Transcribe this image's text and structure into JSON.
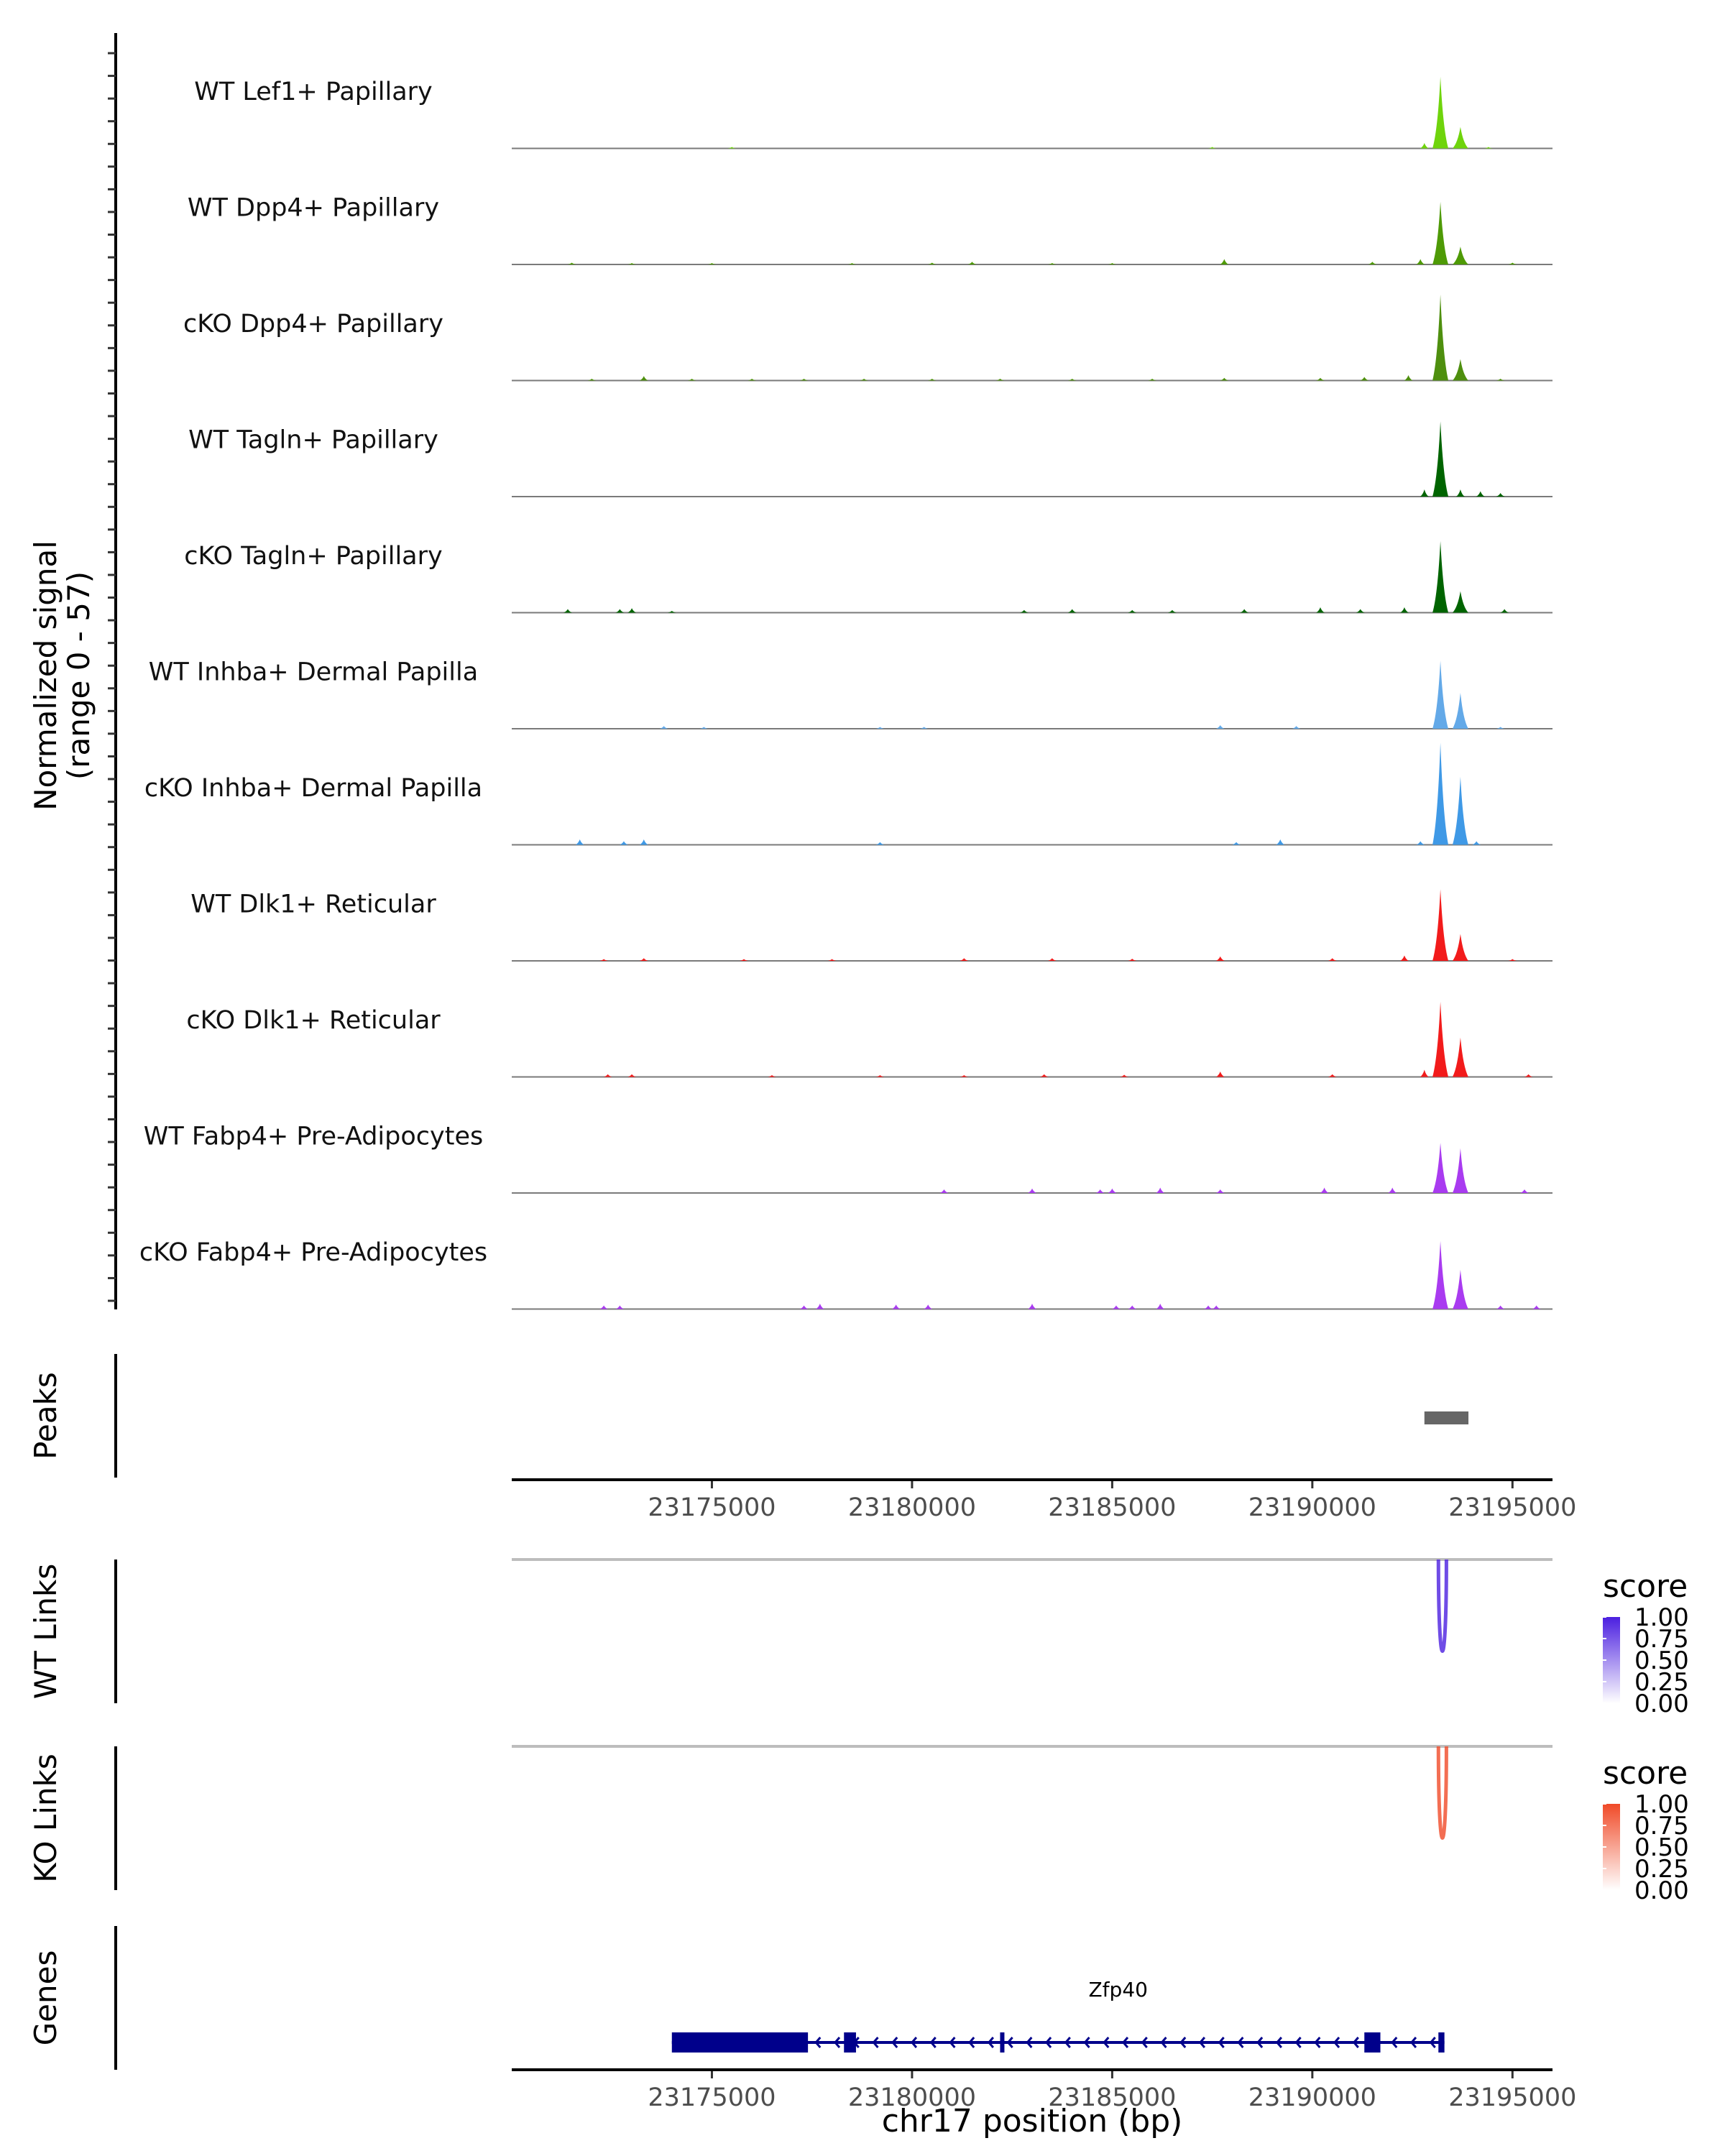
{
  "chart_data": {
    "type": "area",
    "title": "",
    "coverage": {
      "ylabel_line1": "Normalized signal",
      "ylabel_line2": "(range 0 - 57)",
      "ylim": [
        0,
        57
      ],
      "tracks": [
        {
          "name": "WT Lef1+ Papillary",
          "color": "#6FD40C",
          "peaks": [
            [
              23175500,
              0.6
            ],
            [
              23187500,
              0.3
            ],
            [
              23192800,
              3
            ],
            [
              23193200,
              40
            ],
            [
              23193700,
              12
            ],
            [
              23194400,
              0.5
            ]
          ]
        },
        {
          "name": "WT Dpp4+ Papillary",
          "color": "#4E9A06",
          "peaks": [
            [
              23171500,
              1
            ],
            [
              23173000,
              0.6
            ],
            [
              23175000,
              0.8
            ],
            [
              23178500,
              0.8
            ],
            [
              23180500,
              1
            ],
            [
              23181500,
              1.5
            ],
            [
              23183500,
              0.8
            ],
            [
              23185000,
              0.6
            ],
            [
              23187800,
              3
            ],
            [
              23191500,
              1.5
            ],
            [
              23192700,
              3
            ],
            [
              23193200,
              35
            ],
            [
              23193700,
              10
            ],
            [
              23195000,
              1
            ]
          ]
        },
        {
          "name": "cKO Dpp4+ Papillary",
          "color": "#4E8F0E",
          "peaks": [
            [
              23172000,
              1
            ],
            [
              23173300,
              2.5
            ],
            [
              23174500,
              1
            ],
            [
              23176000,
              1
            ],
            [
              23177300,
              1
            ],
            [
              23178800,
              1
            ],
            [
              23180500,
              1
            ],
            [
              23182200,
              1
            ],
            [
              23184000,
              1
            ],
            [
              23186000,
              1
            ],
            [
              23187800,
              1.5
            ],
            [
              23190200,
              1.5
            ],
            [
              23191300,
              2
            ],
            [
              23192400,
              3
            ],
            [
              23193200,
              48
            ],
            [
              23193700,
              12
            ],
            [
              23194700,
              1
            ]
          ]
        },
        {
          "name": "WT Tagln+ Papillary",
          "color": "#006400",
          "peaks": [
            [
              23192800,
              4
            ],
            [
              23193200,
              42
            ],
            [
              23193700,
              4
            ],
            [
              23194200,
              3
            ],
            [
              23194700,
              2
            ]
          ]
        },
        {
          "name": "cKO Tagln+ Papillary",
          "color": "#006400",
          "peaks": [
            [
              23171400,
              2
            ],
            [
              23172700,
              2
            ],
            [
              23173000,
              2.5
            ],
            [
              23174000,
              1
            ],
            [
              23182800,
              1.5
            ],
            [
              23184000,
              2
            ],
            [
              23185500,
              1.5
            ],
            [
              23186500,
              1.5
            ],
            [
              23188300,
              2
            ],
            [
              23190200,
              3
            ],
            [
              23191200,
              2
            ],
            [
              23192300,
              3
            ],
            [
              23193200,
              40
            ],
            [
              23193700,
              12
            ],
            [
              23194800,
              2
            ]
          ]
        },
        {
          "name": "WT Inhba+ Dermal Papilla",
          "color": "#63A9E8",
          "peaks": [
            [
              23173800,
              1.5
            ],
            [
              23174800,
              1
            ],
            [
              23179200,
              1
            ],
            [
              23180300,
              1
            ],
            [
              23187700,
              2
            ],
            [
              23189600,
              1.5
            ],
            [
              23193200,
              38
            ],
            [
              23193700,
              20
            ],
            [
              23194700,
              1
            ]
          ]
        },
        {
          "name": "cKO Inhba+ Dermal Papilla",
          "color": "#3F99E6",
          "peaks": [
            [
              23171700,
              3
            ],
            [
              23172800,
              2
            ],
            [
              23173300,
              3
            ],
            [
              23179200,
              1.5
            ],
            [
              23188100,
              1.5
            ],
            [
              23189200,
              3
            ],
            [
              23192700,
              2
            ],
            [
              23193200,
              57
            ],
            [
              23193700,
              38
            ],
            [
              23194100,
              2
            ]
          ]
        },
        {
          "name": "WT Dlk1+ Reticular",
          "color": "#F21B1B",
          "peaks": [
            [
              23172300,
              1
            ],
            [
              23173300,
              1.5
            ],
            [
              23175800,
              1
            ],
            [
              23178000,
              1
            ],
            [
              23181300,
              1.5
            ],
            [
              23183500,
              1.5
            ],
            [
              23185500,
              1.2
            ],
            [
              23187700,
              2.5
            ],
            [
              23190500,
              1.5
            ],
            [
              23192300,
              3
            ],
            [
              23193200,
              40
            ],
            [
              23193700,
              15
            ],
            [
              23195000,
              1
            ]
          ]
        },
        {
          "name": "cKO Dlk1+ Reticular",
          "color": "#F21B1B",
          "peaks": [
            [
              23172400,
              1.5
            ],
            [
              23173000,
              1.5
            ],
            [
              23176500,
              1
            ],
            [
              23179200,
              1
            ],
            [
              23181300,
              1
            ],
            [
              23183300,
              1.5
            ],
            [
              23185300,
              1.2
            ],
            [
              23187700,
              3
            ],
            [
              23190500,
              1.5
            ],
            [
              23192800,
              4
            ],
            [
              23193200,
              42
            ],
            [
              23193700,
              22
            ],
            [
              23195400,
              1.5
            ]
          ]
        },
        {
          "name": "WT Fabp4+ Pre-Adipocytes",
          "color": "#A93BF0",
          "peaks": [
            [
              23180800,
              2
            ],
            [
              23183000,
              2.5
            ],
            [
              23184700,
              2
            ],
            [
              23185000,
              2.5
            ],
            [
              23186200,
              3
            ],
            [
              23187700,
              2
            ],
            [
              23190300,
              3
            ],
            [
              23192000,
              3
            ],
            [
              23193200,
              28
            ],
            [
              23193700,
              25
            ],
            [
              23195300,
              2
            ]
          ]
        },
        {
          "name": "cKO Fabp4+ Pre-Adipocytes",
          "color": "#A93BF0",
          "peaks": [
            [
              23172300,
              2
            ],
            [
              23172700,
              2
            ],
            [
              23177300,
              2
            ],
            [
              23177700,
              3
            ],
            [
              23179600,
              2.5
            ],
            [
              23180400,
              2.5
            ],
            [
              23183000,
              3
            ],
            [
              23185100,
              2
            ],
            [
              23185500,
              2
            ],
            [
              23186200,
              3
            ],
            [
              23187400,
              2
            ],
            [
              23187600,
              2
            ],
            [
              23193200,
              38
            ],
            [
              23193700,
              22
            ],
            [
              23194700,
              2
            ],
            [
              23195600,
              2
            ]
          ]
        }
      ]
    },
    "peaks_track": {
      "label": "Peaks",
      "regions": [
        {
          "start": 23192800,
          "end": 23193900,
          "color": "#666666"
        }
      ]
    },
    "x_axis": {
      "range": [
        23170000,
        23196000
      ],
      "ticks": [
        23175000,
        23180000,
        23185000,
        23190000,
        23195000
      ],
      "tick_labels": [
        "23175000",
        "23180000",
        "23185000",
        "23190000",
        "23195000"
      ],
      "xlabel": "chr17 position (bp)"
    },
    "links": [
      {
        "label": "WT Links",
        "legend_title": "score",
        "high_color": "#4B1FE0",
        "legend_ticks": [
          "1.00",
          "0.75",
          "0.50",
          "0.25",
          "0.00"
        ],
        "arcs": [
          {
            "start": 23193150,
            "end": 23193350,
            "score": 0.8
          }
        ]
      },
      {
        "label": "KO Links",
        "legend_title": "score",
        "high_color": "#F04A28",
        "legend_ticks": [
          "1.00",
          "0.75",
          "0.50",
          "0.25",
          "0.00"
        ],
        "arcs": [
          {
            "start": 23193150,
            "end": 23193350,
            "score": 0.8
          }
        ]
      }
    ],
    "genes": {
      "label": "Genes",
      "items": [
        {
          "name": "Zfp40",
          "start": 23174000,
          "end": 23193300,
          "strand": "-",
          "exons": [
            [
              23174000,
              23177400
            ],
            [
              23178300,
              23178600
            ],
            [
              23182200,
              23182300
            ],
            [
              23191300,
              23191700
            ],
            [
              23193150,
              23193300
            ]
          ],
          "thin_exons": [
            [
              23174000,
              23174200
            ]
          ],
          "color": "#00008B"
        }
      ]
    }
  }
}
